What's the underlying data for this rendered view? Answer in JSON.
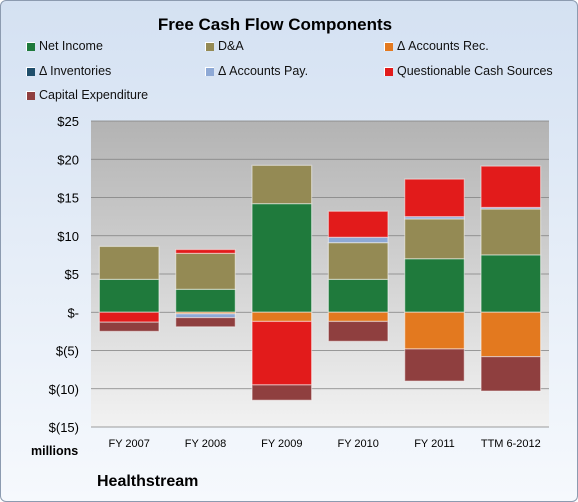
{
  "chart_data": {
    "type": "bar",
    "stacked": true,
    "title": "Free Cash Flow Components",
    "ylabel": "millions",
    "ylim": [
      -15,
      25
    ],
    "y_ticks": [
      "$(15)",
      "$(10)",
      "$(5)",
      "$-",
      "$5",
      "$10",
      "$15",
      "$20",
      "$25"
    ],
    "grid": true,
    "legend_placement": "top",
    "categories": [
      "FY 2007",
      "FY 2008",
      "FY 2009",
      "FY 2010",
      "FY 2011",
      "TTM 6-2012"
    ],
    "series": [
      {
        "name": "Net Income",
        "color": "#1f7a3c",
        "values": [
          4.3,
          3.0,
          14.2,
          4.3,
          7.0,
          7.5
        ]
      },
      {
        "name": "D&A",
        "color": "#948a54",
        "values": [
          4.3,
          4.7,
          5.0,
          4.8,
          5.2,
          6.0
        ]
      },
      {
        "name": "Δ Accounts Rec.",
        "color": "#e3791f",
        "values": [
          0,
          -0.2,
          -1.2,
          -1.2,
          -4.8,
          -5.8
        ]
      },
      {
        "name": "Δ Inventories",
        "color": "#1f4e6b",
        "values": [
          0,
          0,
          0,
          0,
          0,
          0
        ]
      },
      {
        "name": "Δ Accounts Pay.",
        "color": "#8ea9d6",
        "values": [
          0,
          -0.5,
          0,
          0.7,
          0.3,
          0.2
        ]
      },
      {
        "name": "Questionable Cash Sources",
        "color": "#e21b1b",
        "values": [
          -1.3,
          0.5,
          -8.3,
          3.4,
          4.9,
          5.4
        ]
      },
      {
        "name": "Capital Expenditure",
        "color": "#8f3f3f",
        "values": [
          -1.2,
          -1.2,
          -2.0,
          -2.6,
          -4.2,
          -4.5
        ]
      }
    ]
  },
  "company": "Healthstream"
}
